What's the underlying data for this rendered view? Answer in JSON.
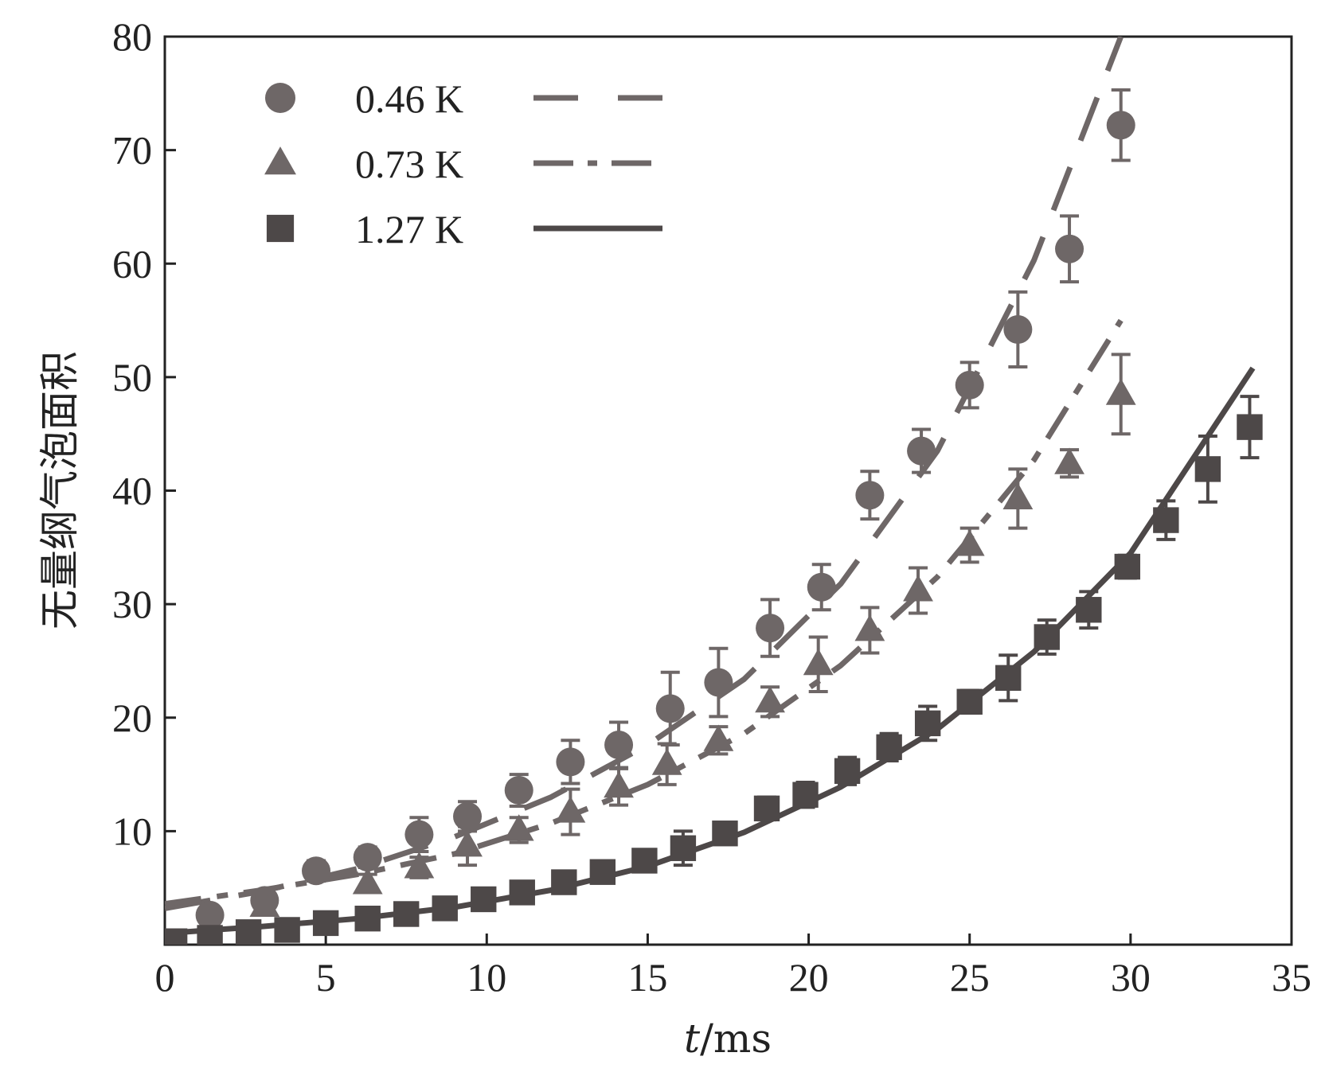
{
  "chart_data": {
    "type": "scatter",
    "title": "",
    "xlabel": {
      "var": "t",
      "unit": "/ms"
    },
    "ylabel": "无量纲气泡面积",
    "xlim": [
      0,
      35
    ],
    "ylim": [
      0,
      80
    ],
    "x_ticks": [
      "0",
      "5",
      "10",
      "15",
      "20",
      "25",
      "30",
      "35"
    ],
    "y_ticks": [
      "10",
      "20",
      "30",
      "40",
      "50",
      "60",
      "70",
      "80"
    ],
    "x_tick_values": [
      0,
      5,
      10,
      15,
      20,
      25,
      30,
      35
    ],
    "y_tick_values": [
      10,
      20,
      30,
      40,
      50,
      60,
      70,
      80
    ],
    "grid": false,
    "legend_position": "top-left",
    "colors": {
      "marker": "#6e6767",
      "solid": "#4d4848",
      "axis": "#222222"
    },
    "series": [
      {
        "name": "0.46 K",
        "marker": "circle",
        "line": "dashed",
        "x": [
          1.4,
          3.1,
          4.7,
          6.3,
          7.9,
          9.4,
          11.0,
          12.6,
          14.1,
          15.7,
          17.2,
          18.8,
          20.4,
          21.9,
          23.5,
          25.0,
          26.5,
          28.1,
          29.7
        ],
        "y": [
          2.6,
          3.9,
          6.5,
          7.7,
          9.7,
          11.3,
          13.6,
          16.1,
          17.6,
          20.8,
          23.1,
          27.9,
          31.5,
          39.6,
          43.5,
          49.3,
          54.2,
          61.3,
          72.2
        ],
        "err": [
          0.8,
          0.8,
          0.9,
          0.9,
          1.5,
          1.3,
          1.4,
          1.9,
          2.0,
          3.2,
          3.0,
          2.5,
          2.0,
          2.1,
          1.9,
          2.0,
          3.3,
          2.9,
          3.1
        ],
        "fit": {
          "x": [
            0,
            3,
            6,
            9,
            12,
            15,
            18,
            21,
            24,
            27,
            29.7
          ],
          "y": [
            3.2,
            4.7,
            6.7,
            9.5,
            13.0,
            17.6,
            23.4,
            31.8,
            43.5,
            60.3,
            80.0
          ]
        }
      },
      {
        "name": "0.73 K",
        "marker": "triangle",
        "line": "dash-dot",
        "x": [
          3.1,
          6.3,
          7.9,
          9.4,
          11.0,
          12.6,
          14.1,
          15.6,
          17.2,
          18.8,
          20.3,
          21.9,
          23.4,
          25.0,
          26.5,
          28.1,
          29.7
        ],
        "y": [
          3.4,
          5.4,
          6.8,
          8.7,
          10.1,
          11.7,
          13.9,
          15.9,
          18.0,
          21.4,
          24.7,
          27.7,
          31.2,
          35.2,
          39.3,
          42.4,
          48.5
        ],
        "err": [
          0.8,
          0.8,
          0.9,
          1.7,
          1.1,
          2.0,
          1.6,
          1.8,
          1.2,
          1.3,
          2.4,
          2.0,
          2.0,
          1.5,
          2.6,
          1.2,
          3.5
        ],
        "fit": {
          "x": [
            0,
            3,
            6,
            9,
            12,
            15,
            18,
            21,
            24,
            27,
            29.7
          ],
          "y": [
            3.6,
            4.8,
            6.2,
            8.0,
            10.7,
            14.1,
            18.6,
            24.6,
            32.4,
            42.7,
            55.0
          ]
        }
      },
      {
        "name": "1.27 K",
        "marker": "square",
        "line": "solid",
        "x": [
          0.3,
          1.4,
          2.6,
          3.8,
          5.0,
          6.3,
          7.5,
          8.7,
          9.9,
          11.1,
          12.4,
          13.6,
          14.9,
          16.1,
          17.4,
          18.7,
          19.9,
          21.2,
          22.5,
          23.7,
          25.0,
          26.2,
          27.4,
          28.7,
          29.9,
          31.1,
          32.4,
          33.7
        ],
        "y": [
          0.3,
          0.6,
          1.1,
          1.3,
          1.9,
          2.3,
          2.7,
          3.2,
          4.0,
          4.6,
          5.5,
          6.4,
          7.4,
          8.5,
          9.8,
          12.0,
          13.2,
          15.3,
          17.4,
          19.5,
          21.4,
          23.5,
          27.1,
          29.5,
          33.3,
          37.4,
          41.9,
          45.6
        ],
        "err": [
          0.3,
          0.4,
          0.5,
          0.5,
          0.5,
          0.6,
          0.6,
          0.7,
          0.7,
          0.8,
          0.8,
          0.8,
          0.9,
          1.5,
          0.8,
          1.0,
          1.1,
          1.2,
          1.2,
          1.5,
          1.0,
          2.0,
          1.5,
          1.6,
          1.0,
          1.7,
          2.9,
          2.7
        ],
        "fit": {
          "x": [
            0,
            3,
            6,
            9,
            12,
            15,
            18,
            21,
            24,
            27,
            30,
            33.8
          ],
          "y": [
            1.0,
            1.6,
            2.3,
            3.3,
            4.8,
            6.9,
            9.9,
            13.9,
            19.0,
            25.8,
            34.5,
            50.8
          ]
        }
      }
    ]
  }
}
